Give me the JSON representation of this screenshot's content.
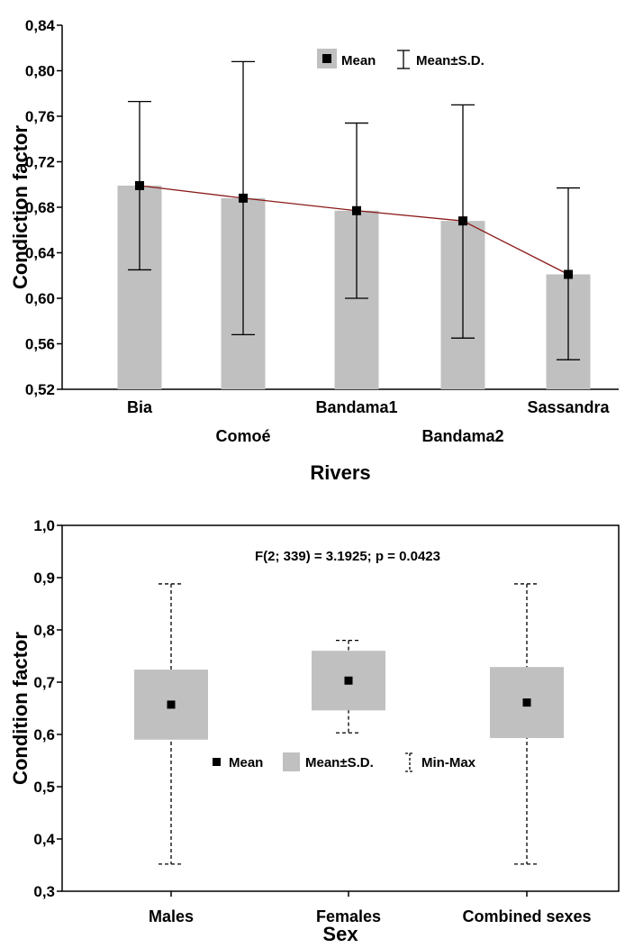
{
  "colors": {
    "bar": "#c0c0c0",
    "line": "#8b1a1a",
    "marker": "#000000",
    "axis": "#000000"
  },
  "chart_data": [
    {
      "type": "bar",
      "xlabel": "Rivers",
      "ylabel": "Condiction factor",
      "ylim": [
        0.52,
        0.84
      ],
      "yticks": [
        "0,52",
        "0,56",
        "0,60",
        "0,64",
        "0,68",
        "0,72",
        "0,76",
        "0,80",
        "0,84"
      ],
      "categories": [
        "Bia",
        "Comoé",
        "Bandama1",
        "Bandama2",
        "Sassandra"
      ],
      "mean": [
        0.699,
        0.688,
        0.677,
        0.668,
        0.621
      ],
      "sd_low": [
        0.625,
        0.568,
        0.6,
        0.565,
        0.546
      ],
      "sd_high": [
        0.773,
        0.808,
        0.754,
        0.77,
        0.697
      ],
      "legend": {
        "mean": "Mean",
        "sd": "Mean±S.D."
      },
      "legend_position": "top-right",
      "grid": false
    },
    {
      "type": "box",
      "xlabel": "Sex",
      "ylabel": "Condition factor",
      "ylim": [
        0.3,
        1.0
      ],
      "yticks": [
        "0,3",
        "0,4",
        "0,5",
        "0,6",
        "0,7",
        "0,8",
        "0,9",
        "1,0"
      ],
      "annotation": "F(2; 339) = 3.1925; p = 0.0423",
      "categories": [
        "Males",
        "Females",
        "Combined sexes"
      ],
      "mean": [
        0.657,
        0.703,
        0.661
      ],
      "sd_low": [
        0.59,
        0.646,
        0.593
      ],
      "sd_high": [
        0.724,
        0.76,
        0.729
      ],
      "min": [
        0.352,
        0.603,
        0.352
      ],
      "max": [
        0.888,
        0.78,
        0.888
      ],
      "legend": {
        "mean": "Mean",
        "sd": "Mean±S.D.",
        "range": "Min-Max"
      },
      "legend_position": "bottom-center",
      "grid": false
    }
  ]
}
